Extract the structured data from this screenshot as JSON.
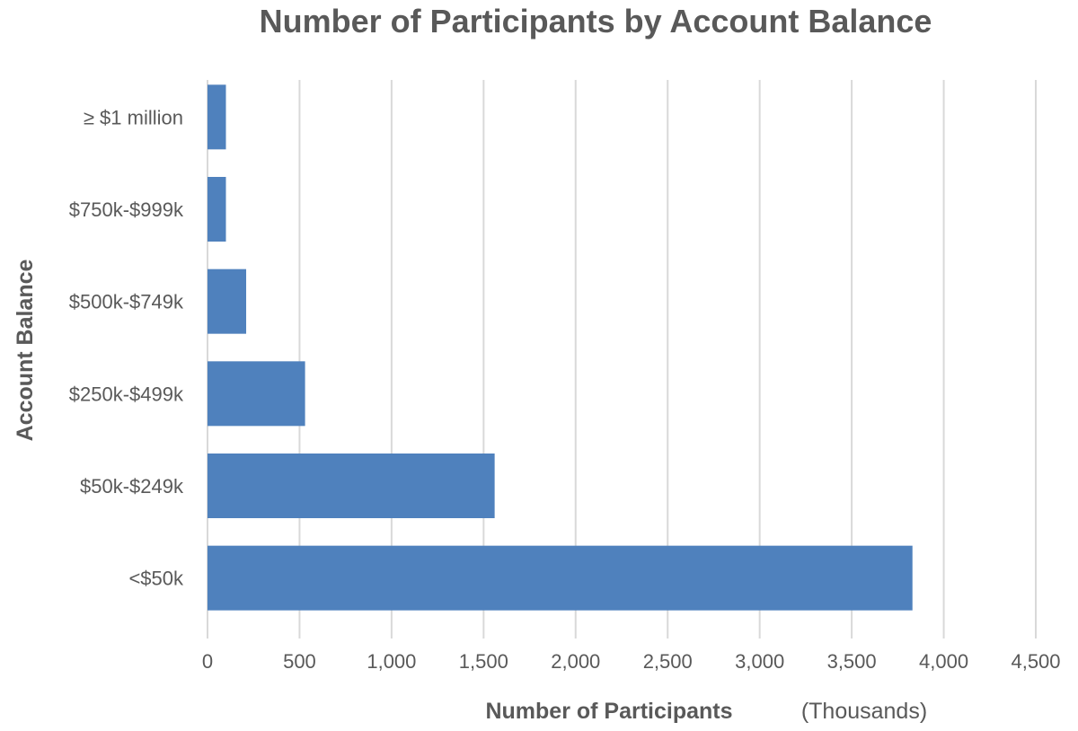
{
  "chart_data": {
    "type": "bar",
    "orientation": "horizontal",
    "title": "Number of Participants by Account Balance",
    "xlabel": "Number of Participants",
    "x_unit": "(Thousands)",
    "ylabel": "Account Balance",
    "categories": [
      "≥ $1 million",
      "$750k-$999k",
      "$500k-$749k",
      "$250k-$499k",
      "$50k-$249k",
      "<$50k"
    ],
    "values": [
      100,
      100,
      210,
      530,
      1560,
      3830
    ],
    "xlim": [
      0,
      4500
    ],
    "xticks": [
      0,
      500,
      1000,
      1500,
      2000,
      2500,
      3000,
      3500,
      4000,
      4500
    ],
    "xtick_labels": [
      "0",
      "500",
      "1,000",
      "1,500",
      "2,000",
      "2,500",
      "3,000",
      "3,500",
      "4,000",
      "4,500"
    ],
    "grid": true,
    "legend": "none",
    "colors": {
      "bar": "#4f81bd"
    }
  }
}
